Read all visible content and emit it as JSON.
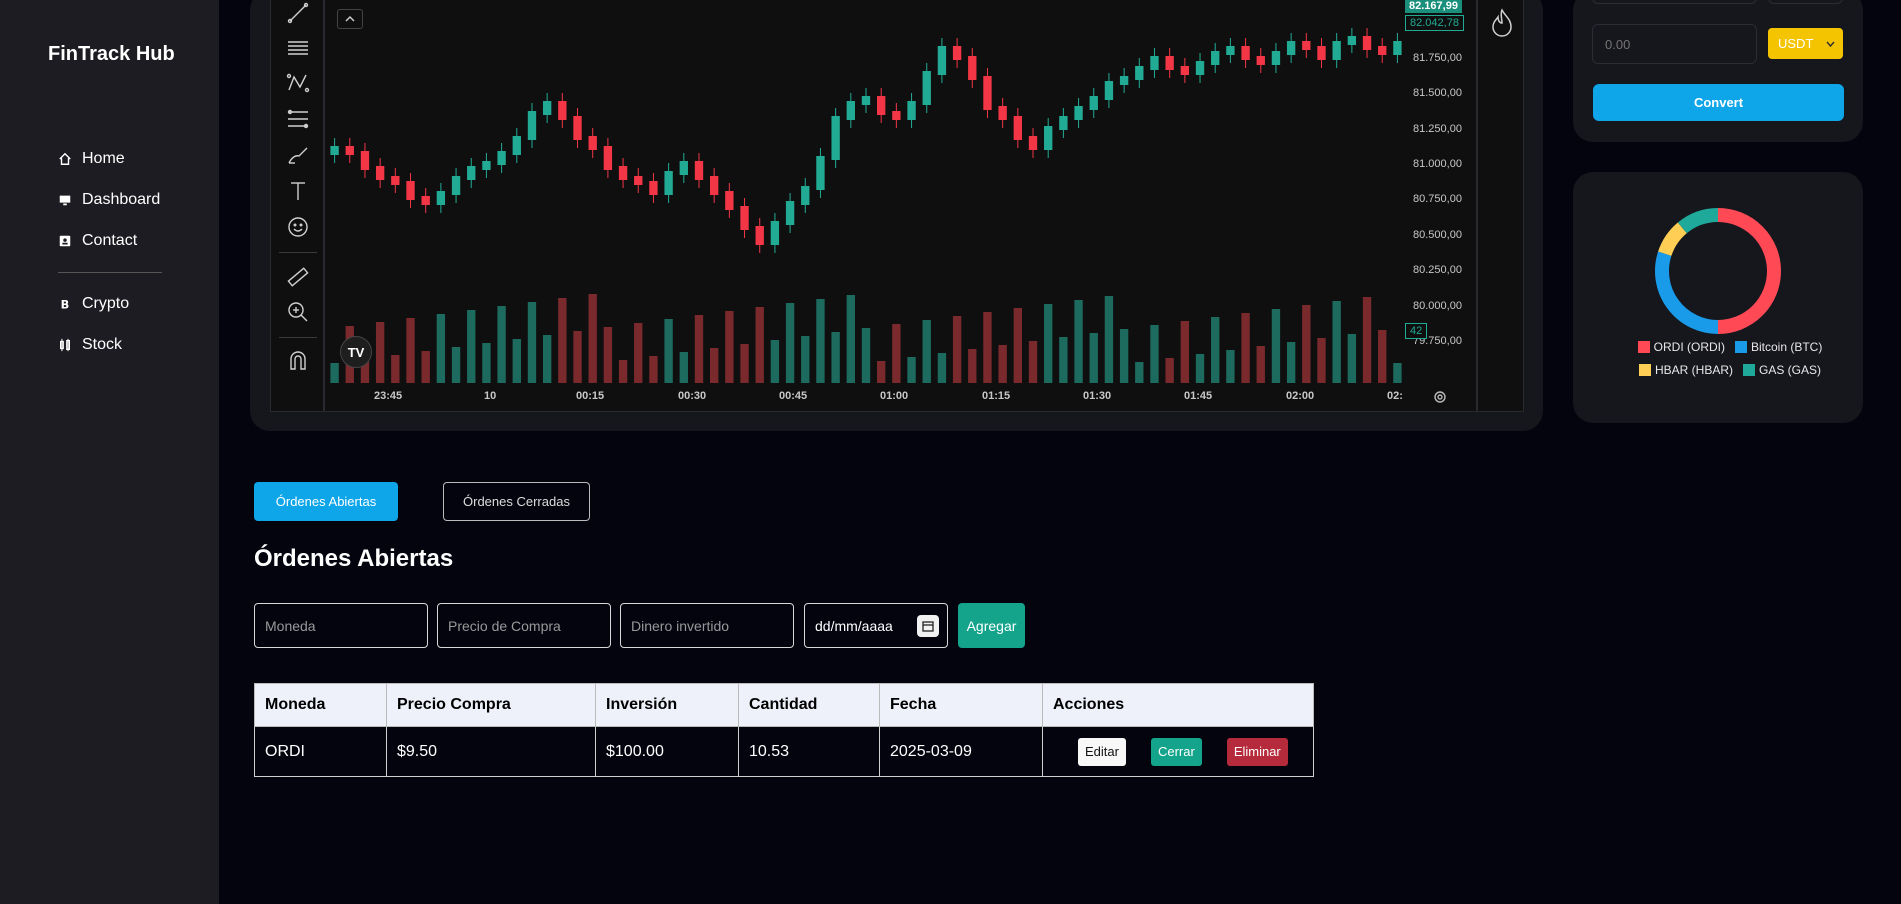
{
  "app": {
    "brand": "FinTrack Hub"
  },
  "sidebar": {
    "items": [
      {
        "label": "Home",
        "icon": "home-icon"
      },
      {
        "label": "Dashboard",
        "icon": "monitor-icon"
      },
      {
        "label": "Contact",
        "icon": "contact-card-icon"
      },
      {
        "label": "Crypto",
        "icon": "bitcoin-icon"
      },
      {
        "label": "Stock",
        "icon": "stock-icon"
      }
    ]
  },
  "trading_chart": {
    "price_ticks": [
      "81.750,00",
      "81.500,00",
      "81.250,00",
      "81.000,00",
      "80.750,00",
      "80.500,00",
      "80.250,00",
      "80.000,00",
      "79.750,00"
    ],
    "current_price": "82.167,99",
    "secondary_price": "82.042,78",
    "volume_tag": "42",
    "time_ticks": [
      "23:45",
      "10",
      "00:15",
      "00:30",
      "00:45",
      "01:00",
      "01:15",
      "01:30",
      "01:45",
      "02:00",
      "02:"
    ],
    "colors": {
      "up": "#22ab94",
      "down": "#f23645",
      "up_volume": "#1d6b5f",
      "down_volume": "#7a2a2d"
    }
  },
  "converter": {
    "amount_placeholder": "0.00",
    "currency": "USDT",
    "convert_label": "Convert",
    "colors": {
      "button": "#0ea5e9",
      "select": "#f5c400"
    }
  },
  "portfolio_donut": {
    "legend": [
      {
        "label": "ORDI (ORDI)",
        "color": "#ff4a55"
      },
      {
        "label": "Bitcoin (BTC)",
        "color": "#1a9bea"
      },
      {
        "label": "HBAR (HBAR)",
        "color": "#ffce55"
      },
      {
        "label": "GAS (GAS)",
        "color": "#1fa99a"
      }
    ],
    "shares": [
      0.5,
      0.3,
      0.09,
      0.11
    ]
  },
  "orders": {
    "tabs": {
      "open": "Órdenes Abiertas",
      "closed": "Órdenes Cerradas"
    },
    "title": "Órdenes Abiertas",
    "form": {
      "coin_placeholder": "Moneda",
      "price_placeholder": "Precio de Compra",
      "invested_placeholder": "Dinero invertido",
      "date_placeholder": "dd/mm/aaaa",
      "add_label": "Agregar"
    },
    "table": {
      "headers": [
        "Moneda",
        "Precio Compra",
        "Inversión",
        "Cantidad",
        "Fecha",
        "Acciones"
      ],
      "rows": [
        {
          "coin": "ORDI",
          "price": "$9.50",
          "invested": "$100.00",
          "quantity": "10.53",
          "date": "2025-03-09"
        }
      ],
      "actions": {
        "edit": "Editar",
        "close": "Cerrar",
        "delete": "Eliminar"
      }
    }
  }
}
